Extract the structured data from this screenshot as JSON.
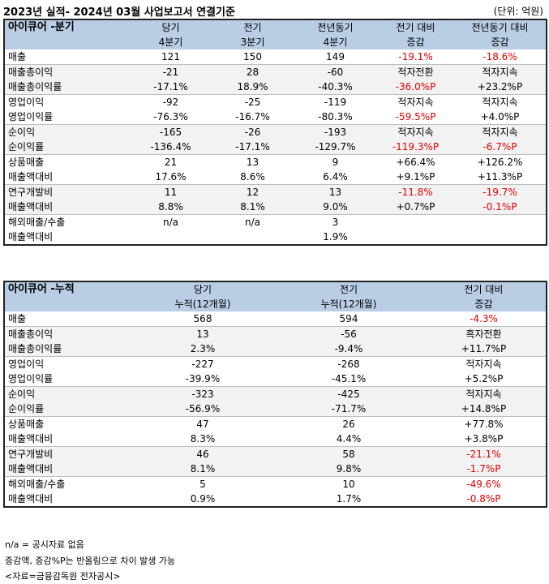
{
  "header": {
    "title": "2023년 실적- 2024년 03월 사업보고서 연결기준",
    "unit": "(단위: 억원)"
  },
  "quarterly": {
    "section_label": "아이큐어 -분기",
    "columns": [
      {
        "line1": "당기",
        "line2": "4분기"
      },
      {
        "line1": "전기",
        "line2": "3분기"
      },
      {
        "line1": "전년동기",
        "line2": "4분기"
      },
      {
        "line1": "전기 대비",
        "line2": "증감"
      },
      {
        "line1": "전년동기 대비",
        "line2": "증감"
      }
    ],
    "rows": [
      {
        "label": "매출",
        "values": [
          "121",
          "150",
          "149",
          "-19.1%",
          "-18.6%"
        ],
        "neg": [
          false,
          false,
          false,
          true,
          true
        ]
      },
      {
        "label": "매출총이익",
        "values": [
          "-21",
          "28",
          "-60",
          "적자전환",
          "적자지속"
        ],
        "neg": [
          false,
          false,
          false,
          false,
          false
        ]
      },
      {
        "label": "매출총이익률",
        "values": [
          "-17.1%",
          "18.9%",
          "-40.3%",
          "-36.0%P",
          "+23.2%P"
        ],
        "neg": [
          false,
          false,
          false,
          true,
          false
        ]
      },
      {
        "label": "영업이익",
        "values": [
          "-92",
          "-25",
          "-119",
          "적자지속",
          "적자지속"
        ],
        "neg": [
          false,
          false,
          false,
          false,
          false
        ]
      },
      {
        "label": "영업이익률",
        "values": [
          "-76.3%",
          "-16.7%",
          "-80.3%",
          "-59.5%P",
          "+4.0%P"
        ],
        "neg": [
          false,
          false,
          false,
          true,
          false
        ]
      },
      {
        "label": "순이익",
        "values": [
          "-165",
          "-26",
          "-193",
          "적자지속",
          "적자지속"
        ],
        "neg": [
          false,
          false,
          false,
          false,
          false
        ]
      },
      {
        "label": "순이익률",
        "values": [
          "-136.4%",
          "-17.1%",
          "-129.7%",
          "-119.3%P",
          "-6.7%P"
        ],
        "neg": [
          false,
          false,
          false,
          true,
          true
        ]
      },
      {
        "label": "상품매출",
        "values": [
          "21",
          "13",
          "9",
          "+66.4%",
          "+126.2%"
        ],
        "neg": [
          false,
          false,
          false,
          false,
          false
        ]
      },
      {
        "label": "매출액대비",
        "values": [
          "17.6%",
          "8.6%",
          "6.4%",
          "+9.1%P",
          "+11.3%P"
        ],
        "neg": [
          false,
          false,
          false,
          false,
          false
        ]
      },
      {
        "label": "연구개발비",
        "values": [
          "11",
          "12",
          "13",
          "-11.8%",
          "-19.7%"
        ],
        "neg": [
          false,
          false,
          false,
          true,
          true
        ]
      },
      {
        "label": "매출액대비",
        "values": [
          "8.8%",
          "8.1%",
          "9.0%",
          "+0.7%P",
          "-0.1%P"
        ],
        "neg": [
          false,
          false,
          false,
          false,
          true
        ]
      },
      {
        "label": "해외매출/수출",
        "values": [
          "n/a",
          "n/a",
          "3",
          "",
          ""
        ],
        "neg": [
          false,
          false,
          false,
          false,
          false
        ]
      },
      {
        "label": "매출액대비",
        "values": [
          "",
          "",
          "1.9%",
          "",
          ""
        ],
        "neg": [
          false,
          false,
          false,
          false,
          false
        ]
      }
    ]
  },
  "cumulative": {
    "section_label": "아이큐어 -누적",
    "columns": [
      {
        "line1": "당기",
        "line2": "누적(12개월)"
      },
      {
        "line1": "전기",
        "line2": "누적(12개월)"
      },
      {
        "line1": "전기 대비",
        "line2": "증감"
      }
    ],
    "rows": [
      {
        "label": "매출",
        "values": [
          "568",
          "594",
          "-4.3%"
        ],
        "neg": [
          false,
          false,
          true
        ]
      },
      {
        "label": "매출총이익",
        "values": [
          "13",
          "-56",
          "흑자전환"
        ],
        "neg": [
          false,
          false,
          false
        ]
      },
      {
        "label": "매출총이익률",
        "values": [
          "2.3%",
          "-9.4%",
          "+11.7%P"
        ],
        "neg": [
          false,
          false,
          false
        ]
      },
      {
        "label": "영업이익",
        "values": [
          "-227",
          "-268",
          "적자지속"
        ],
        "neg": [
          false,
          false,
          false
        ]
      },
      {
        "label": "영업이익률",
        "values": [
          "-39.9%",
          "-45.1%",
          "+5.2%P"
        ],
        "neg": [
          false,
          false,
          false
        ]
      },
      {
        "label": "순이익",
        "values": [
          "-323",
          "-425",
          "적자지속"
        ],
        "neg": [
          false,
          false,
          false
        ]
      },
      {
        "label": "순이익률",
        "values": [
          "-56.9%",
          "-71.7%",
          "+14.8%P"
        ],
        "neg": [
          false,
          false,
          false
        ]
      },
      {
        "label": "상품매출",
        "values": [
          "47",
          "26",
          "+77.8%"
        ],
        "neg": [
          false,
          false,
          false
        ]
      },
      {
        "label": "매출액대비",
        "values": [
          "8.3%",
          "4.4%",
          "+3.8%P"
        ],
        "neg": [
          false,
          false,
          false
        ]
      },
      {
        "label": "연구개발비",
        "values": [
          "46",
          "58",
          "-21.1%"
        ],
        "neg": [
          false,
          false,
          true
        ]
      },
      {
        "label": "매출액대비",
        "values": [
          "8.1%",
          "9.8%",
          "-1.7%P"
        ],
        "neg": [
          false,
          false,
          true
        ]
      },
      {
        "label": "해외매출/수출",
        "values": [
          "5",
          "10",
          "-49.6%"
        ],
        "neg": [
          false,
          false,
          true
        ]
      },
      {
        "label": "매출액대비",
        "values": [
          "0.9%",
          "1.7%",
          "-0.8%P"
        ],
        "neg": [
          false,
          false,
          true
        ]
      }
    ]
  },
  "notes": [
    "n/a = 공시자료 없음",
    "증감액, 증감%P는 반올림으로 차이 발생 가능",
    "<자료=금융감독원 전자공시>"
  ],
  "colors": {
    "header_bg": "#b9cde5",
    "negative": "#e00000",
    "shade": "#f2f2f2"
  }
}
